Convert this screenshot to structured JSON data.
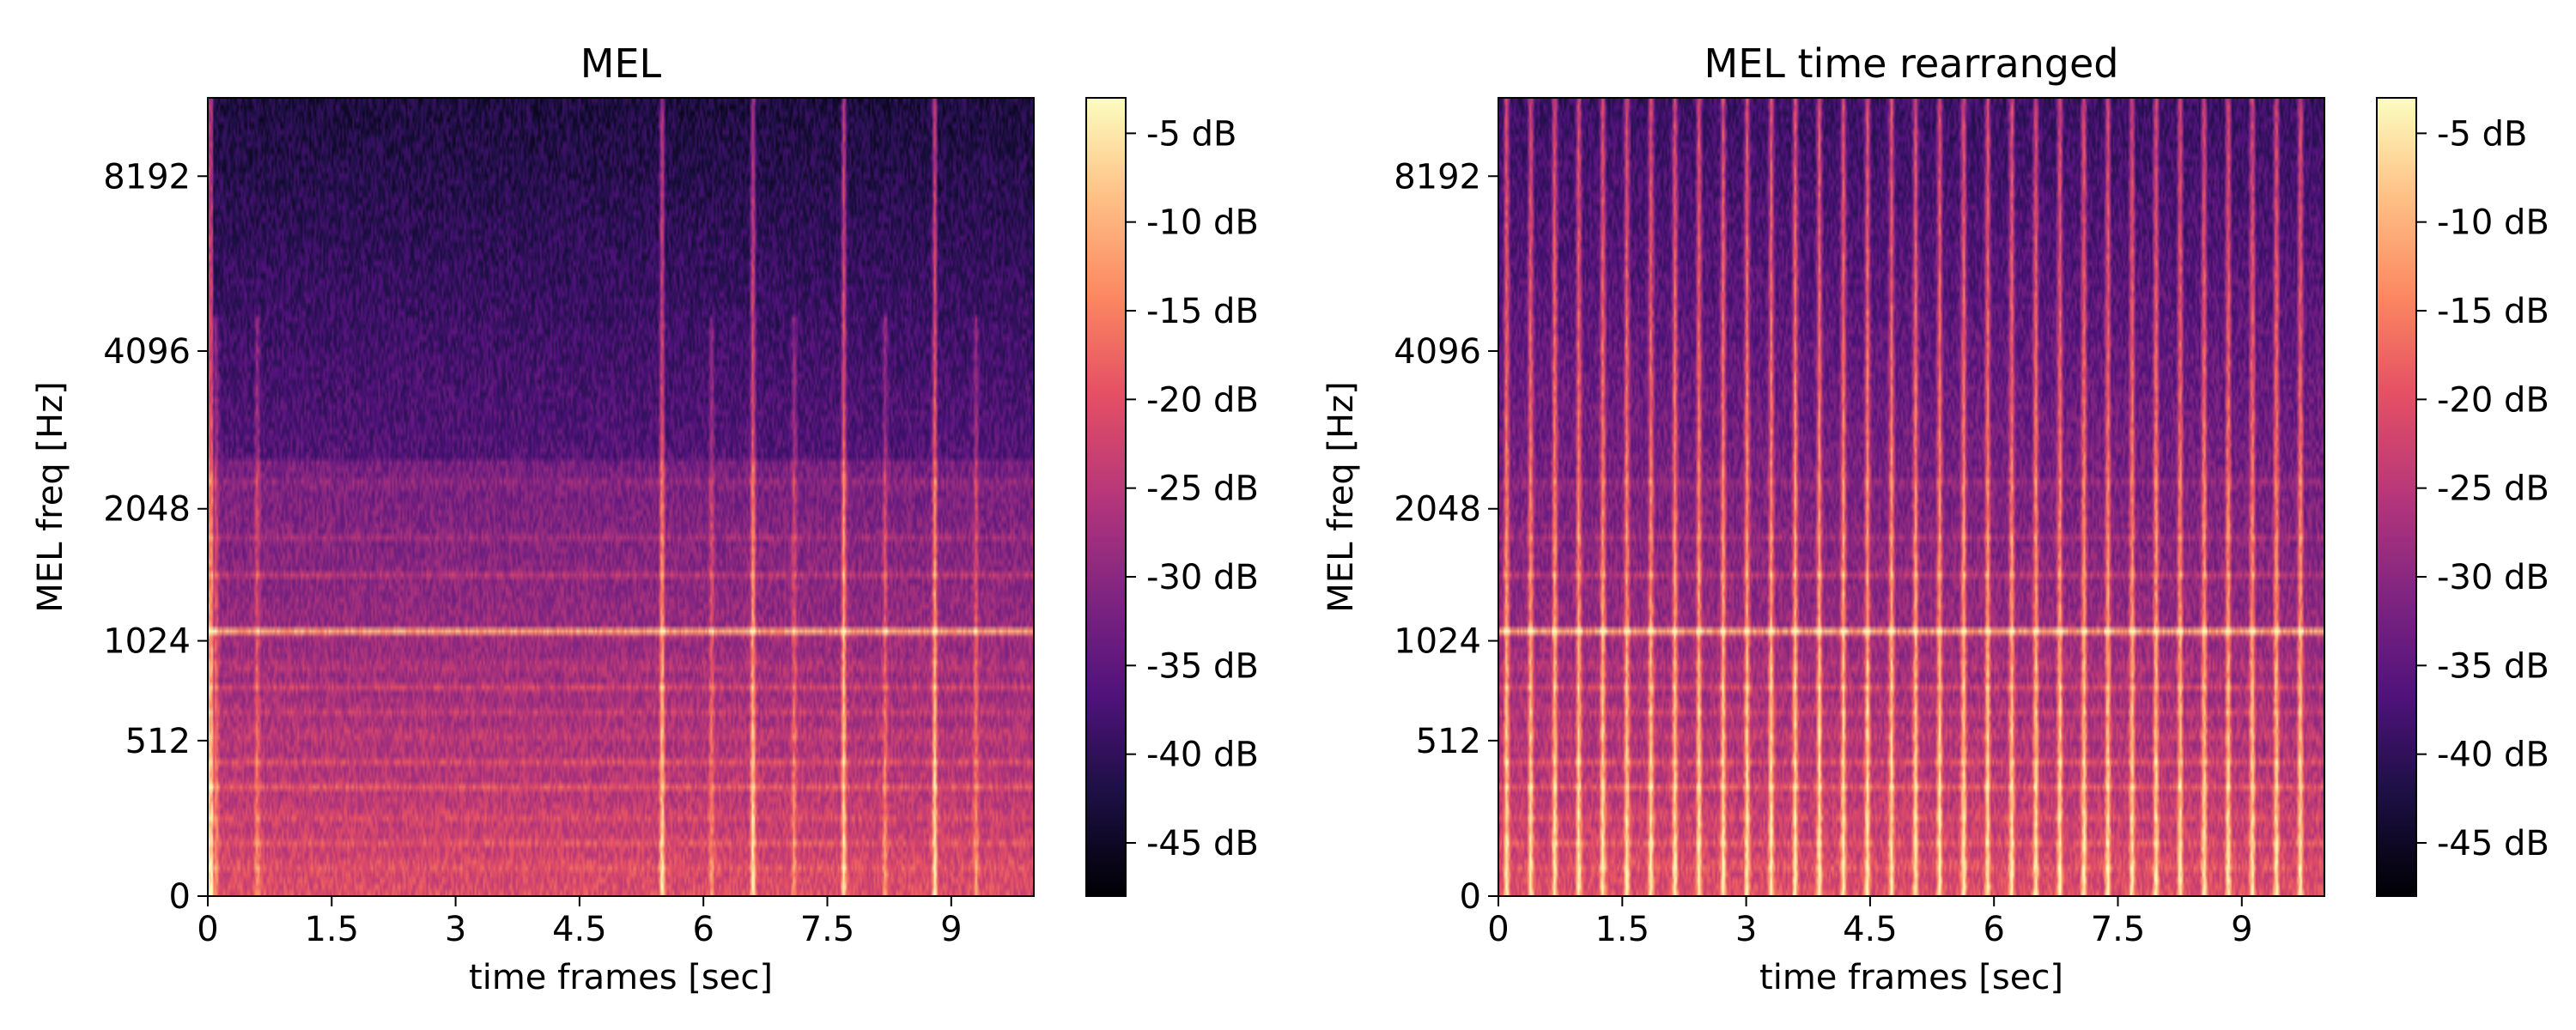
{
  "chart_data": [
    {
      "type": "heatmap",
      "title": "MEL",
      "xlabel": "time frames [sec]",
      "ylabel": "MEL freq [Hz]",
      "xticks": [
        "0",
        "1.5",
        "3",
        "4.5",
        "6",
        "7.5",
        "9"
      ],
      "xtick_values": [
        0,
        1.5,
        3,
        4.5,
        6,
        7.5,
        9
      ],
      "xlim": [
        0,
        10
      ],
      "yticks": [
        "0",
        "512",
        "1024",
        "2048",
        "4096",
        "8192"
      ],
      "ytick_values": [
        0,
        512,
        1024,
        2048,
        4096,
        8192
      ],
      "yscale": "mel",
      "ylim": [
        0,
        11025
      ],
      "colormap": "magma",
      "colorbar": {
        "ticks": [
          "-5 dB",
          "-10 dB",
          "-15 dB",
          "-20 dB",
          "-25 dB",
          "-30 dB",
          "-35 dB",
          "-40 dB",
          "-45 dB"
        ],
        "tick_values": [
          -5,
          -10,
          -15,
          -20,
          -25,
          -30,
          -35,
          -40,
          -45
        ],
        "range": [
          -48,
          -3
        ]
      },
      "horizontal_bands_hz": [
        80,
        150,
        230,
        330,
        420,
        540,
        650,
        760,
        880,
        1080,
        1480,
        1800,
        2300
      ],
      "strong_band_hz": 1080,
      "vertical_events_sec": [
        0.1,
        0.6,
        5.5,
        6.1,
        6.6,
        7.1,
        7.7,
        8.2,
        8.8,
        9.3
      ],
      "full_height_events_sec": [
        5.5,
        6.6,
        7.7,
        8.8
      ]
    },
    {
      "type": "heatmap",
      "title": "MEL time rearranged",
      "xlabel": "time frames [sec]",
      "ylabel": "MEL freq [Hz]",
      "xticks": [
        "0",
        "1.5",
        "3",
        "4.5",
        "6",
        "7.5",
        "9"
      ],
      "xtick_values": [
        0,
        1.5,
        3,
        4.5,
        6,
        7.5,
        9
      ],
      "xlim": [
        0,
        10
      ],
      "yticks": [
        "0",
        "512",
        "1024",
        "2048",
        "4096",
        "8192"
      ],
      "ytick_values": [
        0,
        512,
        1024,
        2048,
        4096,
        8192
      ],
      "yscale": "mel",
      "ylim": [
        0,
        11025
      ],
      "colormap": "magma",
      "colorbar": {
        "ticks": [
          "-5 dB",
          "-10 dB",
          "-15 dB",
          "-20 dB",
          "-25 dB",
          "-30 dB",
          "-35 dB",
          "-40 dB",
          "-45 dB"
        ],
        "tick_values": [
          -5,
          -10,
          -15,
          -20,
          -25,
          -30,
          -35,
          -40,
          -45
        ],
        "range": [
          -48,
          -3
        ]
      },
      "horizontal_bands_hz": [
        80,
        150,
        230,
        330,
        420,
        540,
        650,
        760,
        880,
        1080,
        1480,
        1800,
        2300
      ],
      "strong_band_hz": 1080,
      "vertical_event_count": 34
    }
  ]
}
